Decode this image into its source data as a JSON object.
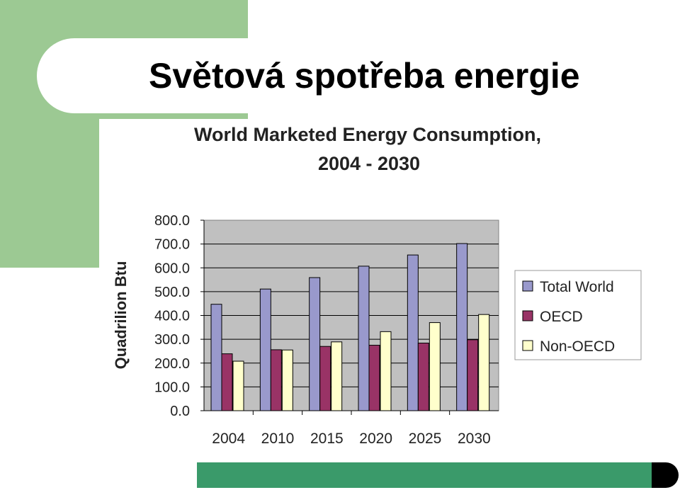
{
  "slide": {
    "title": "Světová spotřeba energie"
  },
  "colors": {
    "deco_green": "#9cc993",
    "bar_green": "#3a9a6a",
    "plot_bg": "#c0c0c0",
    "total_world": "#9999cc",
    "oecd": "#993366",
    "non_oecd": "#ffffcc"
  },
  "chart_data": {
    "type": "bar",
    "title": "World Marketed Energy Consumption,",
    "subtitle": "2004 - 2030",
    "xlabel": "",
    "ylabel": "Quadrilion Btu",
    "ylim": [
      0,
      800
    ],
    "yticks": [
      "800.0",
      "700.0",
      "600.0",
      "500.0",
      "400.0",
      "300.0",
      "200.0",
      "100.0",
      "0.0"
    ],
    "categories": [
      "2004",
      "2010",
      "2015",
      "2020",
      "2025",
      "2030"
    ],
    "grid": true,
    "legend_position": "right",
    "series": [
      {
        "name": "Total World",
        "color": "#9999cc",
        "values": [
          447,
          511,
          559,
          607,
          654,
          702
        ]
      },
      {
        "name": "OECD",
        "color": "#993366",
        "values": [
          239,
          256,
          270,
          275,
          284,
          298
        ]
      },
      {
        "name": "Non-OECD",
        "color": "#ffffcc",
        "values": [
          208,
          255,
          289,
          332,
          370,
          404
        ]
      }
    ]
  }
}
